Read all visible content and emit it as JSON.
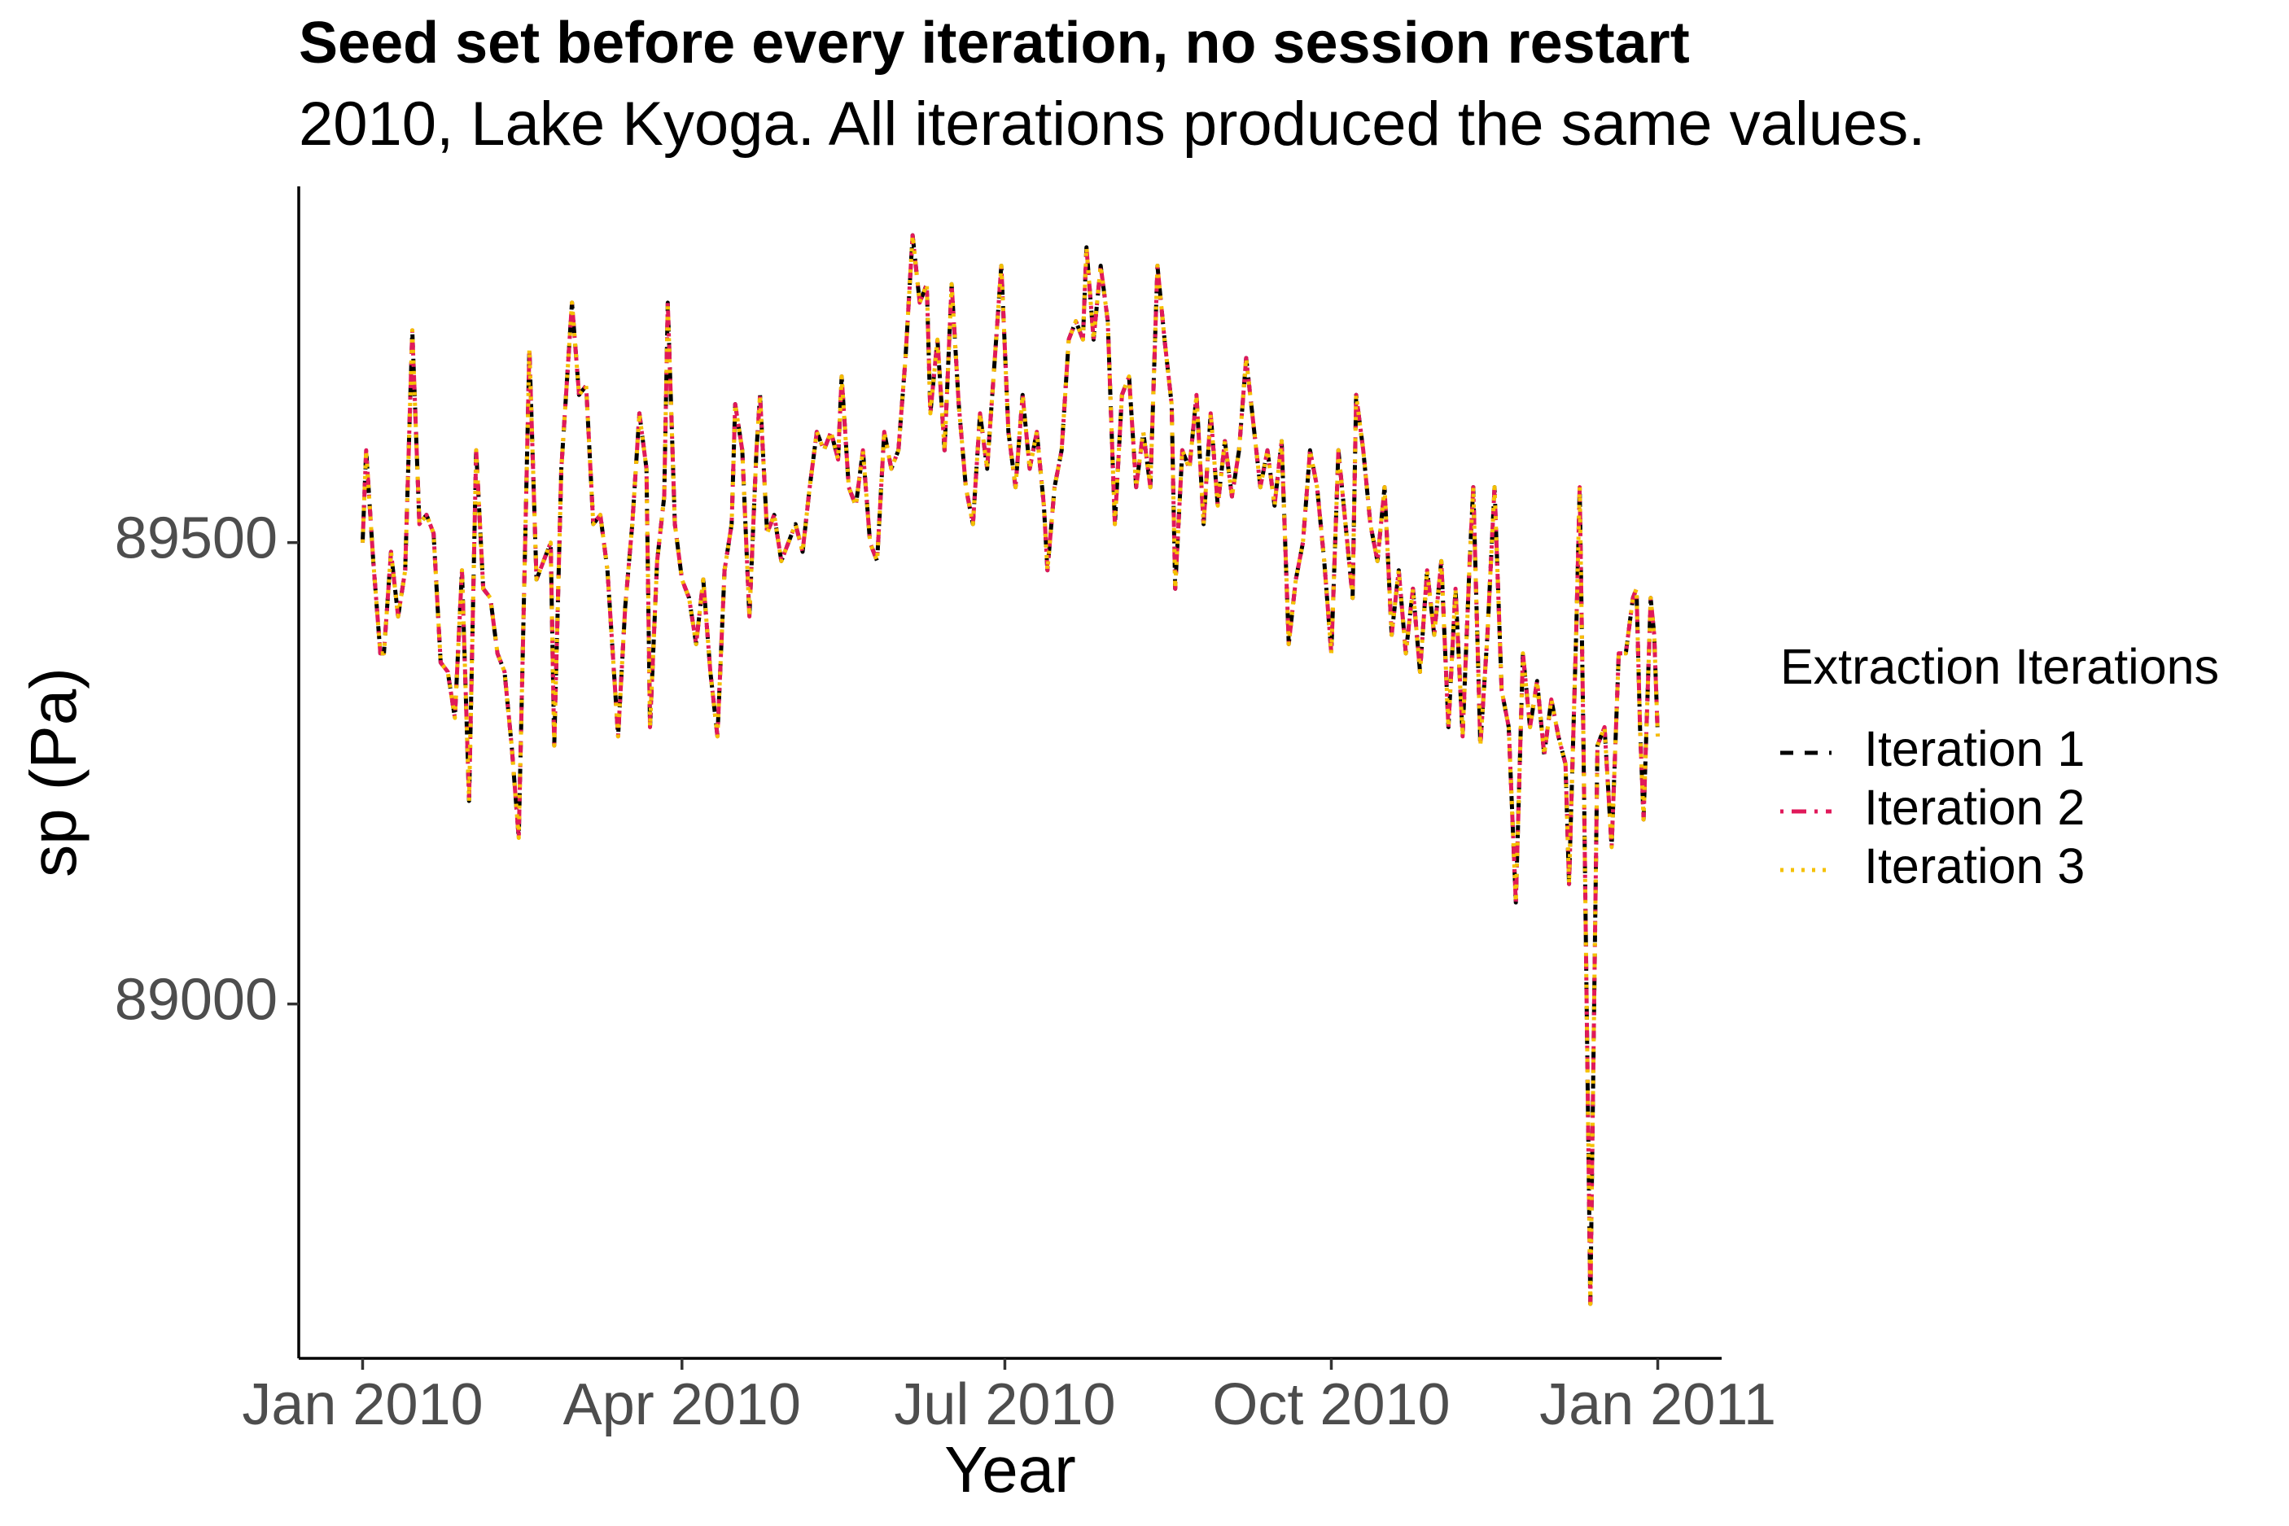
{
  "chart_data": {
    "type": "line",
    "title": "Seed set before every iteration, no session restart",
    "subtitle": "2010, Lake Kyoga. All iterations produced the same values.",
    "xlabel": "Year",
    "ylabel": "sp (Pa)",
    "legend_title": "Extraction Iterations",
    "legend": "right",
    "x": [
      0,
      1,
      3,
      5,
      6,
      8,
      10,
      12,
      14,
      16,
      18,
      20,
      22,
      24,
      26,
      28,
      30,
      32,
      34,
      36,
      38,
      40,
      42,
      44,
      47,
      49,
      51,
      53,
      54,
      56,
      59,
      61,
      63,
      65,
      67,
      69,
      72,
      74,
      76,
      78,
      80,
      81,
      83,
      85,
      86,
      88,
      90,
      92,
      94,
      96,
      98,
      100,
      102,
      104,
      105,
      107,
      109,
      111,
      112,
      114,
      116,
      118,
      120,
      122,
      124,
      126,
      128,
      130,
      132,
      134,
      135,
      137,
      139,
      141,
      143,
      145,
      147,
      149,
      151,
      153,
      155,
      157,
      159,
      160,
      162,
      164,
      166,
      168,
      170,
      172,
      174,
      176,
      178,
      180,
      182,
      184,
      186,
      188,
      190,
      192,
      193,
      195,
      197,
      199,
      201,
      203,
      204,
      206,
      208,
      210,
      212,
      214,
      216,
      218,
      220,
      222,
      224,
      226,
      228,
      229,
      231,
      233,
      235,
      237,
      239,
      241,
      243,
      245,
      247,
      249,
      251,
      253,
      255,
      257,
      259,
      261,
      263,
      265,
      267,
      269,
      271,
      273,
      275,
      277,
      279,
      280,
      282,
      284,
      286,
      288,
      290,
      292,
      294,
      296,
      298,
      300,
      302,
      304,
      306,
      308,
      310,
      312,
      313,
      315,
      317,
      319,
      321,
      323,
      325,
      327,
      329,
      331,
      333,
      335,
      337,
      339,
      340,
      342,
      343,
      344,
      346,
      348,
      350,
      352,
      354,
      356,
      358,
      359,
      360,
      361,
      363,
      364,
      365
    ],
    "series": [
      {
        "name": "Iteration 1",
        "color": "#000000",
        "dash": "dashed",
        "values": [
          89500,
          89600,
          89480,
          89380,
          89380,
          89490,
          89420,
          89470,
          89730,
          89520,
          89530,
          89510,
          89370,
          89360,
          89310,
          89470,
          89220,
          89600,
          89450,
          89440,
          89380,
          89360,
          89280,
          89180,
          89710,
          89460,
          89480,
          89500,
          89280,
          89580,
          89760,
          89660,
          89670,
          89520,
          89530,
          89470,
          89290,
          89430,
          89520,
          89640,
          89580,
          89300,
          89480,
          89550,
          89760,
          89520,
          89460,
          89440,
          89390,
          89460,
          89360,
          89290,
          89470,
          89520,
          89650,
          89600,
          89420,
          89600,
          89660,
          89510,
          89530,
          89480,
          89500,
          89520,
          89490,
          89560,
          89620,
          89600,
          89620,
          89590,
          89680,
          89560,
          89540,
          89600,
          89500,
          89480,
          89620,
          89580,
          89600,
          89700,
          89833,
          89760,
          89780,
          89640,
          89720,
          89600,
          89780,
          89650,
          89560,
          89520,
          89640,
          89580,
          89690,
          89800,
          89620,
          89560,
          89660,
          89580,
          89620,
          89540,
          89470,
          89560,
          89600,
          89720,
          89740,
          89720,
          89820,
          89720,
          89800,
          89740,
          89520,
          89660,
          89680,
          89560,
          89620,
          89560,
          89800,
          89720,
          89650,
          89450,
          89600,
          89580,
          89660,
          89520,
          89640,
          89540,
          89610,
          89550,
          89600,
          89700,
          89630,
          89560,
          89600,
          89540,
          89610,
          89390,
          89460,
          89500,
          89600,
          89560,
          89480,
          89380,
          89600,
          89520,
          89440,
          89660,
          89600,
          89520,
          89480,
          89560,
          89400,
          89470,
          89380,
          89450,
          89360,
          89470,
          89400,
          89480,
          89300,
          89450,
          89290,
          89480,
          89560,
          89280,
          89400,
          89560,
          89340,
          89300,
          89110,
          89380,
          89300,
          89350,
          89270,
          89330,
          89290,
          89260,
          89130,
          89400,
          89560,
          89300,
          88675,
          89280,
          89300,
          89170,
          89380,
          89380,
          89440,
          89450,
          89300,
          89200,
          89440,
          89400,
          89290
        ]
      },
      {
        "name": "Iteration 2",
        "color": "#e0195a",
        "dash": "dotdash",
        "values": [
          89500,
          89600,
          89480,
          89380,
          89380,
          89490,
          89420,
          89470,
          89730,
          89520,
          89530,
          89510,
          89370,
          89360,
          89310,
          89470,
          89220,
          89600,
          89450,
          89440,
          89380,
          89360,
          89280,
          89180,
          89710,
          89460,
          89480,
          89500,
          89280,
          89580,
          89760,
          89660,
          89670,
          89520,
          89530,
          89470,
          89290,
          89430,
          89520,
          89640,
          89580,
          89300,
          89480,
          89550,
          89760,
          89520,
          89460,
          89440,
          89390,
          89460,
          89360,
          89290,
          89470,
          89520,
          89650,
          89600,
          89420,
          89600,
          89660,
          89510,
          89530,
          89480,
          89500,
          89520,
          89490,
          89560,
          89620,
          89600,
          89620,
          89590,
          89680,
          89560,
          89540,
          89600,
          89500,
          89480,
          89620,
          89580,
          89600,
          89700,
          89833,
          89760,
          89780,
          89640,
          89720,
          89600,
          89780,
          89650,
          89560,
          89520,
          89640,
          89580,
          89690,
          89800,
          89620,
          89560,
          89660,
          89580,
          89620,
          89540,
          89470,
          89560,
          89600,
          89720,
          89740,
          89720,
          89820,
          89720,
          89800,
          89740,
          89520,
          89660,
          89680,
          89560,
          89620,
          89560,
          89800,
          89720,
          89650,
          89450,
          89600,
          89580,
          89660,
          89520,
          89640,
          89540,
          89610,
          89550,
          89600,
          89700,
          89630,
          89560,
          89600,
          89540,
          89610,
          89390,
          89460,
          89500,
          89600,
          89560,
          89480,
          89380,
          89600,
          89520,
          89440,
          89660,
          89600,
          89520,
          89480,
          89560,
          89400,
          89470,
          89380,
          89450,
          89360,
          89470,
          89400,
          89480,
          89300,
          89450,
          89290,
          89480,
          89560,
          89280,
          89400,
          89560,
          89340,
          89300,
          89110,
          89380,
          89300,
          89350,
          89270,
          89330,
          89290,
          89260,
          89130,
          89400,
          89560,
          89300,
          88675,
          89280,
          89300,
          89170,
          89380,
          89380,
          89440,
          89450,
          89300,
          89200,
          89440,
          89400,
          89290
        ]
      },
      {
        "name": "Iteration 3",
        "color": "#f5c000",
        "dash": "dotted",
        "values": [
          89500,
          89600,
          89480,
          89380,
          89380,
          89490,
          89420,
          89470,
          89730,
          89520,
          89530,
          89510,
          89370,
          89360,
          89310,
          89470,
          89220,
          89600,
          89450,
          89440,
          89380,
          89360,
          89280,
          89180,
          89710,
          89460,
          89480,
          89500,
          89280,
          89580,
          89760,
          89660,
          89670,
          89520,
          89530,
          89470,
          89290,
          89430,
          89520,
          89640,
          89580,
          89300,
          89480,
          89550,
          89760,
          89520,
          89460,
          89440,
          89390,
          89460,
          89360,
          89290,
          89470,
          89520,
          89650,
          89600,
          89420,
          89600,
          89660,
          89510,
          89530,
          89480,
          89500,
          89520,
          89490,
          89560,
          89620,
          89600,
          89620,
          89590,
          89680,
          89560,
          89540,
          89600,
          89500,
          89480,
          89620,
          89580,
          89600,
          89700,
          89833,
          89760,
          89780,
          89640,
          89720,
          89600,
          89780,
          89650,
          89560,
          89520,
          89640,
          89580,
          89690,
          89800,
          89620,
          89560,
          89660,
          89580,
          89620,
          89540,
          89470,
          89560,
          89600,
          89720,
          89740,
          89720,
          89820,
          89720,
          89800,
          89740,
          89520,
          89660,
          89680,
          89560,
          89620,
          89560,
          89800,
          89720,
          89650,
          89450,
          89600,
          89580,
          89660,
          89520,
          89640,
          89540,
          89610,
          89550,
          89600,
          89700,
          89630,
          89560,
          89600,
          89540,
          89610,
          89390,
          89460,
          89500,
          89600,
          89560,
          89480,
          89380,
          89600,
          89520,
          89440,
          89660,
          89600,
          89520,
          89480,
          89560,
          89400,
          89470,
          89380,
          89450,
          89360,
          89470,
          89400,
          89480,
          89300,
          89450,
          89290,
          89480,
          89560,
          89280,
          89400,
          89560,
          89340,
          89300,
          89110,
          89380,
          89300,
          89350,
          89270,
          89330,
          89290,
          89260,
          89130,
          89400,
          89560,
          89300,
          88675,
          89280,
          89300,
          89170,
          89380,
          89380,
          89440,
          89450,
          89300,
          89200,
          89440,
          89400,
          89290
        ]
      }
    ],
    "xlim": [
      -18,
      383
    ],
    "xticks": [
      {
        "value": 0,
        "label": "Jan 2010"
      },
      {
        "value": 90,
        "label": "Apr 2010"
      },
      {
        "value": 181,
        "label": "Jul 2010"
      },
      {
        "value": 273,
        "label": "Oct 2010"
      },
      {
        "value": 365,
        "label": "Jan 2011"
      }
    ],
    "ylim": [
      88616,
      89886
    ],
    "yticks": [
      89000,
      89500
    ],
    "grid": false
  }
}
